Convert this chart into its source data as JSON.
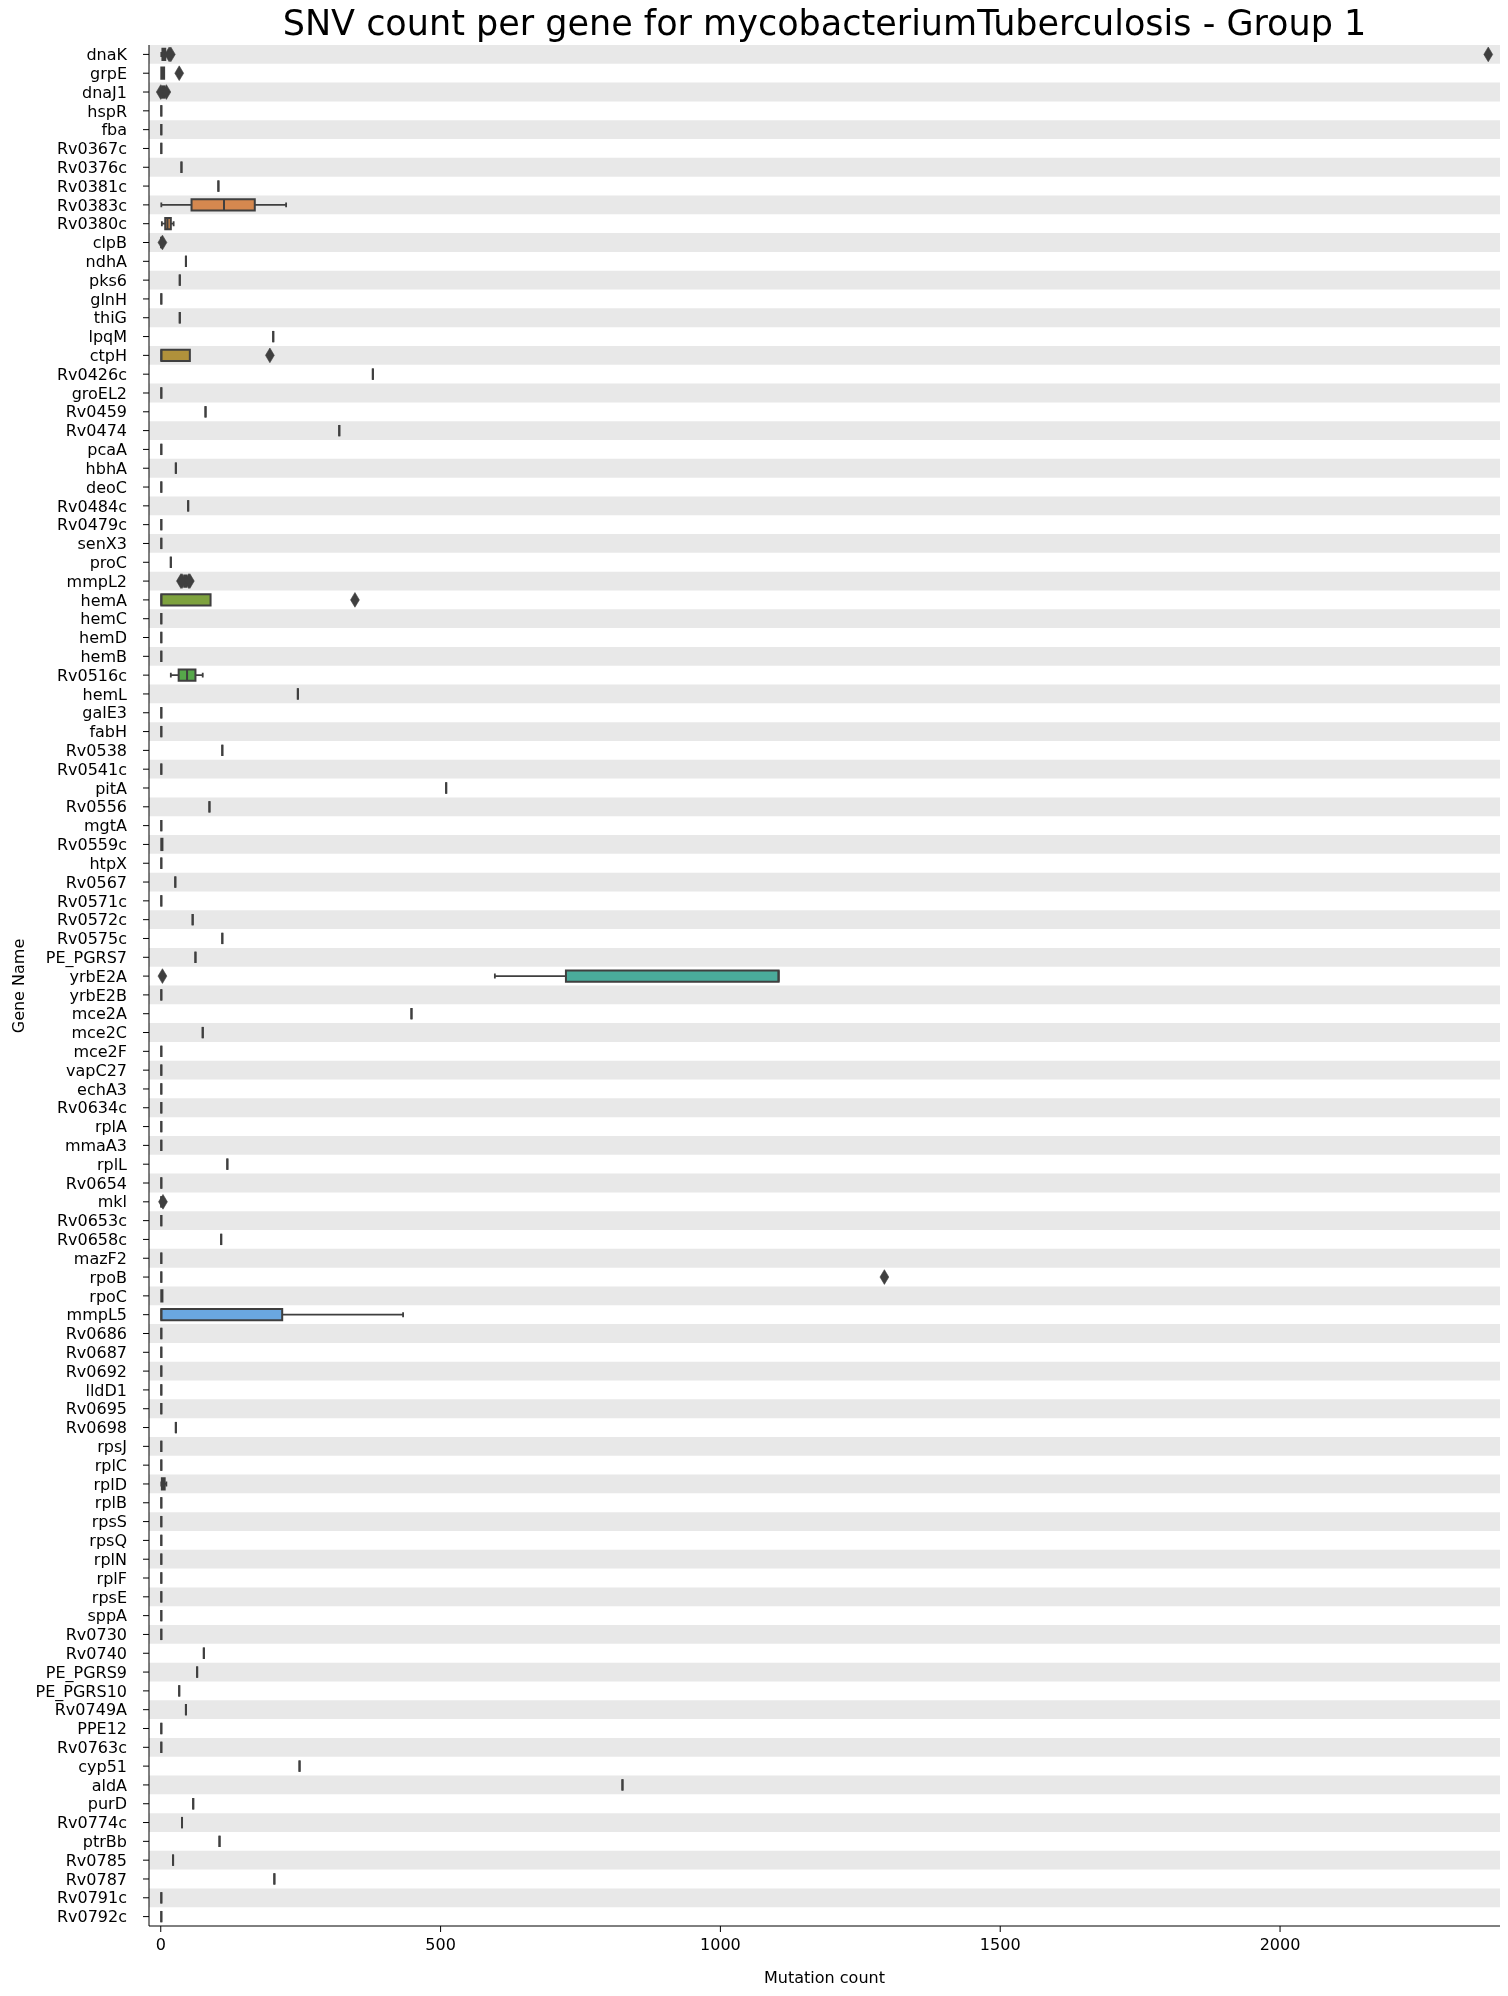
{
  "chart_data": {
    "type": "box",
    "orientation": "horizontal",
    "title": "SNV count per gene for mycobacteriumTuberculosis - Group 1",
    "xlabel": "Mutation count",
    "ylabel": "Gene Name",
    "marker": "diamond",
    "categories": [
      "dnaK",
      "grpE",
      "dnaJ1",
      "hspR",
      "fba",
      "Rv0367c",
      "Rv0376c",
      "Rv0381c",
      "Rv0383c",
      "Rv0380c",
      "clpB",
      "ndhA",
      "pks6",
      "glnH",
      "thiG",
      "lpqM",
      "ctpH",
      "Rv0426c",
      "groEL2",
      "Rv0459",
      "Rv0474",
      "pcaA",
      "hbhA",
      "deoC",
      "Rv0484c",
      "Rv0479c",
      "senX3",
      "proC",
      "mmpL2",
      "hemA",
      "hemC",
      "hemD",
      "hemB",
      "Rv0516c",
      "hemL",
      "galE3",
      "fabH",
      "Rv0538",
      "Rv0541c",
      "pitA",
      "Rv0556",
      "mgtA",
      "Rv0559c",
      "htpX",
      "Rv0567",
      "Rv0571c",
      "Rv0572c",
      "Rv0575c",
      "PE_PGRS7",
      "yrbE2A",
      "yrbE2B",
      "mce2A",
      "mce2C",
      "mce2F",
      "vapC27",
      "echA3",
      "Rv0634c",
      "rplA",
      "mmaA3",
      "rplL",
      "Rv0654",
      "mkl",
      "Rv0653c",
      "Rv0658c",
      "mazF2",
      "rpoB",
      "rpoC",
      "mmpL5",
      "Rv0686",
      "Rv0687",
      "Rv0692",
      "lldD1",
      "Rv0695",
      "Rv0698",
      "rpsJ",
      "rplC",
      "rplD",
      "rplB",
      "rpsS",
      "rpsQ",
      "rplN",
      "rplF",
      "rpsE",
      "sppA",
      "Rv0730",
      "Rv0740",
      "PE_PGRS9",
      "PE_PGRS10",
      "Rv0749A",
      "PPE12",
      "Rv0763c",
      "cyp51",
      "aldA",
      "purD",
      "Rv0774c",
      "ptrBb",
      "Rv0785",
      "Rv0787",
      "Rv0791c",
      "Rv0792c"
    ],
    "boxes": [
      {
        "low": 1,
        "q1": 3,
        "median": 5,
        "q3": 8,
        "high": 12,
        "outliers": [
          15,
          18,
          2372
        ]
      },
      {
        "low": 1,
        "q1": 1,
        "median": 3,
        "q3": 6,
        "high": 6,
        "outliers": [
          33
        ]
      },
      {
        "low": 2,
        "q1": 3,
        "median": 5,
        "q3": 6,
        "high": 8,
        "outliers": [
          0,
          10
        ]
      },
      {
        "low": 1,
        "q1": 1,
        "median": 1,
        "q3": 1,
        "high": 1
      },
      {
        "low": 1,
        "q1": 1,
        "median": 1,
        "q3": 1,
        "high": 1
      },
      {
        "low": 1,
        "q1": 1,
        "median": 1,
        "q3": 1,
        "high": 1
      },
      {
        "low": 37,
        "q1": 37,
        "median": 37,
        "q3": 37,
        "high": 37
      },
      {
        "low": 103,
        "q1": 103,
        "median": 103,
        "q3": 103,
        "high": 103
      },
      {
        "low": 1,
        "q1": 55,
        "median": 113,
        "q3": 168,
        "high": 224
      },
      {
        "low": 2,
        "q1": 8,
        "median": 12,
        "q3": 18,
        "high": 23
      },
      {
        "low": 1,
        "q1": 1,
        "median": 1,
        "q3": 1,
        "high": 1,
        "outliers": [
          3
        ]
      },
      {
        "low": 45,
        "q1": 45,
        "median": 45,
        "q3": 45,
        "high": 45
      },
      {
        "low": 34,
        "q1": 34,
        "median": 34,
        "q3": 34,
        "high": 34
      },
      {
        "low": 1,
        "q1": 1,
        "median": 1,
        "q3": 1,
        "high": 1
      },
      {
        "low": 34,
        "q1": 34,
        "median": 34,
        "q3": 34,
        "high": 34
      },
      {
        "low": 201,
        "q1": 201,
        "median": 201,
        "q3": 201,
        "high": 201
      },
      {
        "low": 1,
        "q1": 1,
        "median": 1,
        "q3": 52,
        "high": 52,
        "outliers": [
          195
        ]
      },
      {
        "low": 379,
        "q1": 379,
        "median": 379,
        "q3": 379,
        "high": 379
      },
      {
        "low": 1,
        "q1": 1,
        "median": 1,
        "q3": 1,
        "high": 1
      },
      {
        "low": 80,
        "q1": 80,
        "median": 80,
        "q3": 80,
        "high": 80
      },
      {
        "low": 319,
        "q1": 319,
        "median": 319,
        "q3": 319,
        "high": 319
      },
      {
        "low": 1,
        "q1": 1,
        "median": 1,
        "q3": 1,
        "high": 1
      },
      {
        "low": 27,
        "q1": 27,
        "median": 27,
        "q3": 27,
        "high": 27
      },
      {
        "low": 1,
        "q1": 1,
        "median": 1,
        "q3": 1,
        "high": 1
      },
      {
        "low": 49,
        "q1": 49,
        "median": 49,
        "q3": 49,
        "high": 49
      },
      {
        "low": 1,
        "q1": 1,
        "median": 1,
        "q3": 1,
        "high": 1
      },
      {
        "low": 1,
        "q1": 1,
        "median": 1,
        "q3": 1,
        "high": 1
      },
      {
        "low": 18,
        "q1": 18,
        "median": 18,
        "q3": 18,
        "high": 18
      },
      {
        "low": 40,
        "q1": 42,
        "median": 44,
        "q3": 46,
        "high": 48,
        "outliers": [
          36,
          38,
          50,
          52
        ]
      },
      {
        "low": 1,
        "q1": 1,
        "median": 1,
        "q3": 89,
        "high": 89,
        "outliers": [
          347
        ]
      },
      {
        "low": 1,
        "q1": 1,
        "median": 1,
        "q3": 1,
        "high": 1
      },
      {
        "low": 1,
        "q1": 1,
        "median": 1,
        "q3": 1,
        "high": 1
      },
      {
        "low": 1,
        "q1": 1,
        "median": 1,
        "q3": 1,
        "high": 1
      },
      {
        "low": 18,
        "q1": 32,
        "median": 47,
        "q3": 62,
        "high": 75
      },
      {
        "low": 245,
        "q1": 245,
        "median": 245,
        "q3": 245,
        "high": 245
      },
      {
        "low": 1,
        "q1": 1,
        "median": 1,
        "q3": 1,
        "high": 1
      },
      {
        "low": 1,
        "q1": 1,
        "median": 1,
        "q3": 1,
        "high": 1
      },
      {
        "low": 110,
        "q1": 110,
        "median": 110,
        "q3": 110,
        "high": 110
      },
      {
        "low": 1,
        "q1": 1,
        "median": 1,
        "q3": 1,
        "high": 1
      },
      {
        "low": 510,
        "q1": 510,
        "median": 510,
        "q3": 510,
        "high": 510
      },
      {
        "low": 87,
        "q1": 87,
        "median": 87,
        "q3": 87,
        "high": 87
      },
      {
        "low": 1,
        "q1": 1,
        "median": 1,
        "q3": 1,
        "high": 1
      },
      {
        "low": 1,
        "q1": 1,
        "median": 2,
        "q3": 3,
        "high": 3
      },
      {
        "low": 1,
        "q1": 1,
        "median": 1,
        "q3": 1,
        "high": 1
      },
      {
        "low": 26,
        "q1": 26,
        "median": 26,
        "q3": 26,
        "high": 26
      },
      {
        "low": 1,
        "q1": 1,
        "median": 1,
        "q3": 1,
        "high": 1
      },
      {
        "low": 57,
        "q1": 57,
        "median": 57,
        "q3": 57,
        "high": 57
      },
      {
        "low": 110,
        "q1": 110,
        "median": 110,
        "q3": 110,
        "high": 110
      },
      {
        "low": 62,
        "q1": 62,
        "median": 62,
        "q3": 62,
        "high": 62
      },
      {
        "low": 597,
        "q1": 724,
        "median": 1104,
        "q3": 1104,
        "high": 1104,
        "outliers": [
          3
        ]
      },
      {
        "low": 1,
        "q1": 1,
        "median": 1,
        "q3": 1,
        "high": 1
      },
      {
        "low": 448,
        "q1": 448,
        "median": 448,
        "q3": 448,
        "high": 448
      },
      {
        "low": 75,
        "q1": 75,
        "median": 75,
        "q3": 75,
        "high": 75
      },
      {
        "low": 1,
        "q1": 1,
        "median": 1,
        "q3": 1,
        "high": 1
      },
      {
        "low": 1,
        "q1": 1,
        "median": 1,
        "q3": 1,
        "high": 1
      },
      {
        "low": 1,
        "q1": 1,
        "median": 1,
        "q3": 1,
        "high": 1
      },
      {
        "low": 1,
        "q1": 1,
        "median": 1,
        "q3": 1,
        "high": 1
      },
      {
        "low": 1,
        "q1": 1,
        "median": 1,
        "q3": 1,
        "high": 1
      },
      {
        "low": 1,
        "q1": 1,
        "median": 1,
        "q3": 1,
        "high": 1
      },
      {
        "low": 119,
        "q1": 119,
        "median": 119,
        "q3": 119,
        "high": 119
      },
      {
        "low": 1,
        "q1": 1,
        "median": 1,
        "q3": 1,
        "high": 1
      },
      {
        "low": 1,
        "q1": 1,
        "median": 1,
        "q3": 1,
        "high": 1,
        "outliers": [
          4
        ]
      },
      {
        "low": 1,
        "q1": 1,
        "median": 1,
        "q3": 1,
        "high": 1
      },
      {
        "low": 108,
        "q1": 108,
        "median": 108,
        "q3": 108,
        "high": 108
      },
      {
        "low": 1,
        "q1": 1,
        "median": 1,
        "q3": 1,
        "high": 1
      },
      {
        "low": 1,
        "q1": 1,
        "median": 1,
        "q3": 1,
        "high": 1,
        "outliers": [
          1293
        ]
      },
      {
        "low": 1,
        "q1": 1,
        "median": 2,
        "q3": 3,
        "high": 3
      },
      {
        "low": 1,
        "q1": 1,
        "median": 1,
        "q3": 217,
        "high": 433
      },
      {
        "low": 1,
        "q1": 1,
        "median": 1,
        "q3": 1,
        "high": 1
      },
      {
        "low": 1,
        "q1": 1,
        "median": 1,
        "q3": 1,
        "high": 1
      },
      {
        "low": 1,
        "q1": 1,
        "median": 1,
        "q3": 1,
        "high": 1
      },
      {
        "low": 1,
        "q1": 1,
        "median": 1,
        "q3": 1,
        "high": 1
      },
      {
        "low": 1,
        "q1": 1,
        "median": 1,
        "q3": 1,
        "high": 1
      },
      {
        "low": 27,
        "q1": 27,
        "median": 27,
        "q3": 27,
        "high": 27
      },
      {
        "low": 1,
        "q1": 1,
        "median": 1,
        "q3": 1,
        "high": 1
      },
      {
        "low": 1,
        "q1": 1,
        "median": 1,
        "q3": 1,
        "high": 1
      },
      {
        "low": 1,
        "q1": 2,
        "median": 4,
        "q3": 7,
        "high": 10
      },
      {
        "low": 1,
        "q1": 1,
        "median": 1,
        "q3": 1,
        "high": 1
      },
      {
        "low": 1,
        "q1": 1,
        "median": 1,
        "q3": 1,
        "high": 1
      },
      {
        "low": 1,
        "q1": 1,
        "median": 1,
        "q3": 1,
        "high": 1
      },
      {
        "low": 1,
        "q1": 1,
        "median": 1,
        "q3": 1,
        "high": 1
      },
      {
        "low": 1,
        "q1": 1,
        "median": 1,
        "q3": 1,
        "high": 1
      },
      {
        "low": 1,
        "q1": 1,
        "median": 1,
        "q3": 1,
        "high": 1
      },
      {
        "low": 1,
        "q1": 1,
        "median": 1,
        "q3": 1,
        "high": 1
      },
      {
        "low": 1,
        "q1": 1,
        "median": 1,
        "q3": 1,
        "high": 1
      },
      {
        "low": 77,
        "q1": 77,
        "median": 77,
        "q3": 77,
        "high": 77
      },
      {
        "low": 65,
        "q1": 65,
        "median": 65,
        "q3": 65,
        "high": 65
      },
      {
        "low": 33,
        "q1": 33,
        "median": 33,
        "q3": 33,
        "high": 33
      },
      {
        "low": 45,
        "q1": 45,
        "median": 45,
        "q3": 45,
        "high": 45
      },
      {
        "low": 1,
        "q1": 1,
        "median": 1,
        "q3": 1,
        "high": 1
      },
      {
        "low": 1,
        "q1": 1,
        "median": 1,
        "q3": 1,
        "high": 1
      },
      {
        "low": 248,
        "q1": 248,
        "median": 248,
        "q3": 248,
        "high": 248
      },
      {
        "low": 825,
        "q1": 825,
        "median": 825,
        "q3": 825,
        "high": 825
      },
      {
        "low": 58,
        "q1": 58,
        "median": 58,
        "q3": 58,
        "high": 58
      },
      {
        "low": 38,
        "q1": 38,
        "median": 38,
        "q3": 38,
        "high": 38
      },
      {
        "low": 105,
        "q1": 105,
        "median": 105,
        "q3": 105,
        "high": 105
      },
      {
        "low": 22,
        "q1": 22,
        "median": 22,
        "q3": 22,
        "high": 22
      },
      {
        "low": 203,
        "q1": 203,
        "median": 203,
        "q3": 203,
        "high": 203
      },
      {
        "low": 1,
        "q1": 1,
        "median": 1,
        "q3": 1,
        "high": 1
      },
      {
        "low": 1,
        "q1": 1,
        "median": 1,
        "q3": 1,
        "high": 1
      }
    ],
    "colors": [
      "#3f3f3f",
      "#3f3f3f",
      "#3f3f3f",
      "#3f3f3f",
      "#3f3f3f",
      "#3f3f3f",
      "#3f3f3f",
      "#3f3f3f",
      "#d5884f",
      "#cc8a50",
      "#3f3f3f",
      "#3f3f3f",
      "#3f3f3f",
      "#3f3f3f",
      "#3f3f3f",
      "#3f3f3f",
      "#b0913b",
      "#3f3f3f",
      "#3f3f3f",
      "#3f3f3f",
      "#3f3f3f",
      "#3f3f3f",
      "#3f3f3f",
      "#3f3f3f",
      "#3f3f3f",
      "#3f3f3f",
      "#3f3f3f",
      "#3f3f3f",
      "#3f3f3f",
      "#7ea23e",
      "#3f3f3f",
      "#3f3f3f",
      "#3f3f3f",
      "#56a84a",
      "#3f3f3f",
      "#3f3f3f",
      "#3f3f3f",
      "#3f3f3f",
      "#3f3f3f",
      "#3f3f3f",
      "#3f3f3f",
      "#3f3f3f",
      "#3f3f3f",
      "#3f3f3f",
      "#3f3f3f",
      "#3f3f3f",
      "#3f3f3f",
      "#3f3f3f",
      "#3f3f3f",
      "#4aab9b",
      "#3f3f3f",
      "#3f3f3f",
      "#3f3f3f",
      "#3f3f3f",
      "#3f3f3f",
      "#3f3f3f",
      "#3f3f3f",
      "#3f3f3f",
      "#3f3f3f",
      "#3f3f3f",
      "#3f3f3f",
      "#3f3f3f",
      "#3f3f3f",
      "#3f3f3f",
      "#3f3f3f",
      "#3f3f3f",
      "#3f3f3f",
      "#6aa7e0",
      "#3f3f3f",
      "#3f3f3f",
      "#3f3f3f",
      "#3f3f3f",
      "#3f3f3f",
      "#3f3f3f",
      "#3f3f3f",
      "#3f3f3f",
      "#3f3f3f",
      "#3f3f3f",
      "#3f3f3f",
      "#3f3f3f",
      "#3f3f3f",
      "#3f3f3f",
      "#3f3f3f",
      "#3f3f3f",
      "#3f3f3f",
      "#3f3f3f",
      "#3f3f3f",
      "#3f3f3f",
      "#3f3f3f",
      "#3f3f3f",
      "#3f3f3f",
      "#3f3f3f",
      "#3f3f3f",
      "#3f3f3f",
      "#3f3f3f",
      "#3f3f3f",
      "#3f3f3f",
      "#3f3f3f",
      "#3f3f3f",
      "#3f3f3f"
    ],
    "xlim": [
      -21,
      2393
    ],
    "xticks": [
      0,
      500,
      1000,
      1500,
      2000
    ],
    "bands": [
      {
        "axis": "y",
        "from": "dnaK",
        "to": "dnaK",
        "color": "#e8e8e8"
      },
      {
        "axis": "y",
        "from": "dnaJ1",
        "to": "dnaJ1",
        "color": "#e8e8e8"
      },
      {
        "axis": "y",
        "from": "fba",
        "to": "fba",
        "color": "#e8e8e8"
      },
      {
        "axis": "y",
        "from": "Rv0376c",
        "to": "Rv0376c",
        "color": "#e8e8e8"
      },
      {
        "axis": "y",
        "from": "Rv0383c",
        "to": "Rv0383c",
        "color": "#e8e8e8"
      },
      {
        "axis": "y",
        "from": "clpB",
        "to": "clpB",
        "color": "#e8e8e8"
      },
      {
        "axis": "y",
        "from": "pks6",
        "to": "pks6",
        "color": "#e8e8e8"
      },
      {
        "axis": "y",
        "from": "thiG",
        "to": "thiG",
        "color": "#e8e8e8"
      },
      {
        "axis": "y",
        "from": "ctpH",
        "to": "ctpH",
        "color": "#e8e8e8"
      },
      {
        "axis": "y",
        "from": "groEL2",
        "to": "groEL2",
        "color": "#e8e8e8"
      },
      {
        "axis": "y",
        "from": "Rv0474",
        "to": "Rv0474",
        "color": "#e8e8e8"
      },
      {
        "axis": "y",
        "from": "hbhA",
        "to": "hbhA",
        "color": "#e8e8e8"
      },
      {
        "axis": "y",
        "from": "Rv0484c",
        "to": "Rv0484c",
        "color": "#e8e8e8"
      },
      {
        "axis": "y",
        "from": "senX3",
        "to": "senX3",
        "color": "#e8e8e8"
      },
      {
        "axis": "y",
        "from": "mmpL2",
        "to": "mmpL2",
        "color": "#e8e8e8"
      },
      {
        "axis": "y",
        "from": "hemC",
        "to": "hemC",
        "color": "#e8e8e8"
      },
      {
        "axis": "y",
        "from": "hemB",
        "to": "hemB",
        "color": "#e8e8e8"
      },
      {
        "axis": "y",
        "from": "hemL",
        "to": "hemL",
        "color": "#e8e8e8"
      },
      {
        "axis": "y",
        "from": "fabH",
        "to": "fabH",
        "color": "#e8e8e8"
      },
      {
        "axis": "y",
        "from": "Rv0541c",
        "to": "Rv0541c",
        "color": "#e8e8e8"
      },
      {
        "axis": "y",
        "from": "Rv0556",
        "to": "Rv0556",
        "color": "#e8e8e8"
      },
      {
        "axis": "y",
        "from": "Rv0559c",
        "to": "Rv0559c",
        "color": "#e8e8e8"
      },
      {
        "axis": "y",
        "from": "Rv0567",
        "to": "Rv0567",
        "color": "#e8e8e8"
      },
      {
        "axis": "y",
        "from": "Rv0572c",
        "to": "Rv0572c",
        "color": "#e8e8e8"
      },
      {
        "axis": "y",
        "from": "PE_PGRS7",
        "to": "PE_PGRS7",
        "color": "#e8e8e8"
      },
      {
        "axis": "y",
        "from": "yrbE2B",
        "to": "yrbE2B",
        "color": "#e8e8e8"
      },
      {
        "axis": "y",
        "from": "mce2C",
        "to": "mce2C",
        "color": "#e8e8e8"
      },
      {
        "axis": "y",
        "from": "vapC27",
        "to": "vapC27",
        "color": "#e8e8e8"
      },
      {
        "axis": "y",
        "from": "Rv0634c",
        "to": "Rv0634c",
        "color": "#e8e8e8"
      },
      {
        "axis": "y",
        "from": "mmaA3",
        "to": "mmaA3",
        "color": "#e8e8e8"
      },
      {
        "axis": "y",
        "from": "Rv0654",
        "to": "Rv0654",
        "color": "#e8e8e8"
      },
      {
        "axis": "y",
        "from": "Rv0653c",
        "to": "Rv0653c",
        "color": "#e8e8e8"
      },
      {
        "axis": "y",
        "from": "mazF2",
        "to": "mazF2",
        "color": "#e8e8e8"
      },
      {
        "axis": "y",
        "from": "rpoC",
        "to": "rpoC",
        "color": "#e8e8e8"
      },
      {
        "axis": "y",
        "from": "Rv0686",
        "to": "Rv0686",
        "color": "#e8e8e8"
      },
      {
        "axis": "y",
        "from": "Rv0692",
        "to": "Rv0692",
        "color": "#e8e8e8"
      },
      {
        "axis": "y",
        "from": "Rv0695",
        "to": "Rv0695",
        "color": "#e8e8e8"
      },
      {
        "axis": "y",
        "from": "rpsJ",
        "to": "rpsJ",
        "color": "#e8e8e8"
      },
      {
        "axis": "y",
        "from": "rplD",
        "to": "rplD",
        "color": "#e8e8e8"
      },
      {
        "axis": "y",
        "from": "rpsS",
        "to": "rpsS",
        "color": "#e8e8e8"
      },
      {
        "axis": "y",
        "from": "rplN",
        "to": "rplN",
        "color": "#e8e8e8"
      },
      {
        "axis": "y",
        "from": "rpsE",
        "to": "rpsE",
        "color": "#e8e8e8"
      },
      {
        "axis": "y",
        "from": "Rv0730",
        "to": "Rv0730",
        "color": "#e8e8e8"
      },
      {
        "axis": "y",
        "from": "PE_PGRS9",
        "to": "PE_PGRS9",
        "color": "#e8e8e8"
      },
      {
        "axis": "y",
        "from": "Rv0749A",
        "to": "Rv0749A",
        "color": "#e8e8e8"
      },
      {
        "axis": "y",
        "from": "Rv0763c",
        "to": "Rv0763c",
        "color": "#e8e8e8"
      },
      {
        "axis": "y",
        "from": "aldA",
        "to": "aldA",
        "color": "#e8e8e8"
      },
      {
        "axis": "y",
        "from": "Rv0774c",
        "to": "Rv0774c",
        "color": "#e8e8e8"
      },
      {
        "axis": "y",
        "from": "Rv0785",
        "to": "Rv0785",
        "color": "#e8e8e8"
      },
      {
        "axis": "y",
        "from": "Rv0791c",
        "to": "Rv0791c",
        "color": "#e8e8e8"
      }
    ]
  }
}
